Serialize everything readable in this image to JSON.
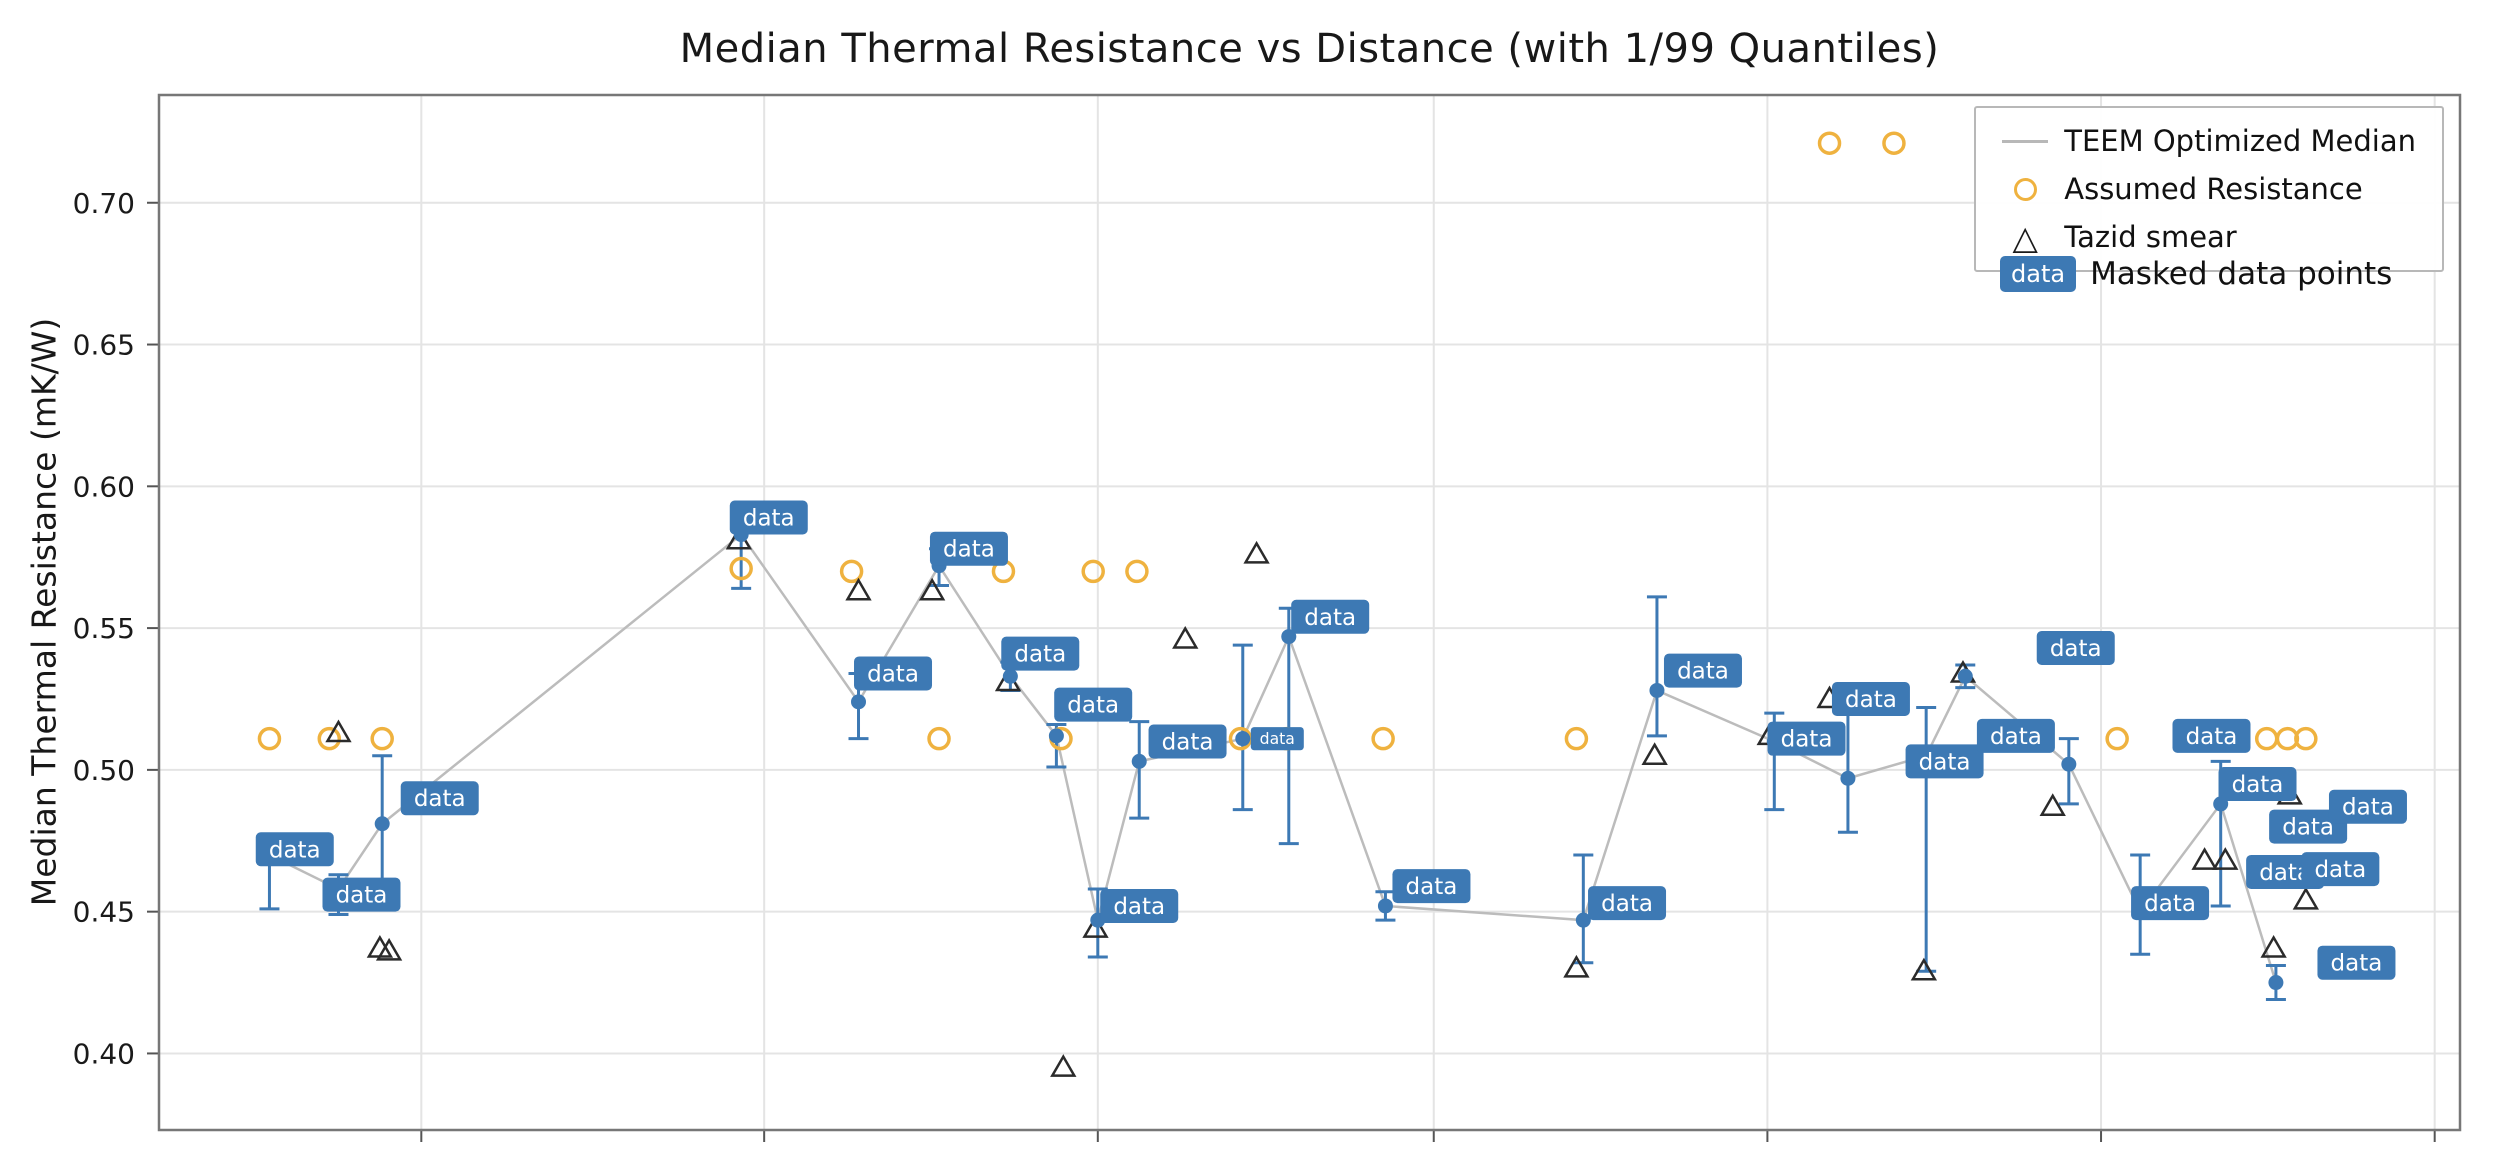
{
  "chart_data": {
    "type": "line",
    "title": "Median Thermal Resistance vs Distance (with 1/99 Quantiles)",
    "xlabel": "",
    "ylabel": "Median Thermal Resistance (mK/W)",
    "ylim": [
      0.373,
      0.738
    ],
    "yticks": [
      0.4,
      0.45,
      0.5,
      0.55,
      0.6,
      0.65,
      0.7
    ],
    "xgrid_percents": [
      11.4,
      26.3,
      40.8,
      55.4,
      69.9,
      84.4,
      98.9
    ],
    "grid": true,
    "badge_text": "data",
    "colors": {
      "median": "#3d79b4",
      "line": "#bcbcbc",
      "assumed": "#efb23f",
      "tazid": "#2b2b2b",
      "badge": "#3d79b4",
      "grid": "#e4e4e4"
    },
    "legend": {
      "position": "upper-right",
      "entries": [
        {
          "label": "TEEM Optimized Median",
          "marker": "line",
          "color": "#b8b8b8"
        },
        {
          "label": "Assumed Resistance",
          "marker": "open-circle",
          "color": "#efb23f"
        },
        {
          "label": "Tazid smear",
          "marker": "open-triangle",
          "color": "#2b2b2b"
        }
      ]
    },
    "masked_legend": {
      "badge": "data",
      "label": "Masked data points"
    },
    "series": [
      {
        "name": "TEEM Optimized Median",
        "type": "line+errorbars",
        "marker": "filled-circle",
        "points": [
          {
            "x": 4.8,
            "y": 0.47,
            "lo": 0.451,
            "hi": 0.477
          },
          {
            "x": 7.8,
            "y": 0.458,
            "lo": 0.449,
            "hi": 0.463
          },
          {
            "x": 9.7,
            "y": 0.481,
            "lo": 0.456,
            "hi": 0.505
          },
          {
            "x": 25.3,
            "y": 0.583,
            "lo": 0.564,
            "hi": 0.587
          },
          {
            "x": 30.4,
            "y": 0.524,
            "lo": 0.511,
            "hi": 0.534
          },
          {
            "x": 33.9,
            "y": 0.572,
            "lo": 0.565,
            "hi": 0.578
          },
          {
            "x": 37.0,
            "y": 0.533,
            "lo": 0.528,
            "hi": 0.538
          },
          {
            "x": 39.0,
            "y": 0.512,
            "lo": 0.501,
            "hi": 0.516
          },
          {
            "x": 40.8,
            "y": 0.447,
            "lo": 0.434,
            "hi": 0.458
          },
          {
            "x": 42.6,
            "y": 0.503,
            "lo": 0.483,
            "hi": 0.517
          },
          {
            "x": 47.1,
            "y": 0.511,
            "lo": 0.486,
            "hi": 0.544
          },
          {
            "x": 49.1,
            "y": 0.547,
            "lo": 0.474,
            "hi": 0.557
          },
          {
            "x": 53.3,
            "y": 0.452,
            "lo": 0.447,
            "hi": 0.457
          },
          {
            "x": 61.9,
            "y": 0.447,
            "lo": 0.432,
            "hi": 0.47
          },
          {
            "x": 65.1,
            "y": 0.528,
            "lo": 0.512,
            "hi": 0.561
          },
          {
            "x": 70.2,
            "y": 0.51,
            "lo": 0.486,
            "hi": 0.52
          },
          {
            "x": 73.4,
            "y": 0.497,
            "lo": 0.478,
            "hi": 0.525
          },
          {
            "x": 76.8,
            "y": 0.505,
            "lo": 0.429,
            "hi": 0.522
          },
          {
            "x": 78.5,
            "y": 0.533,
            "lo": 0.529,
            "hi": 0.537
          },
          {
            "x": 83.0,
            "y": 0.502,
            "lo": 0.488,
            "hi": 0.511
          },
          {
            "x": 86.1,
            "y": 0.45,
            "lo": 0.435,
            "hi": 0.47
          },
          {
            "x": 89.6,
            "y": 0.488,
            "lo": 0.452,
            "hi": 0.503
          },
          {
            "x": 92.0,
            "y": 0.425,
            "lo": 0.419,
            "hi": 0.431
          }
        ]
      },
      {
        "name": "Assumed Resistance",
        "type": "scatter",
        "marker": "open-circle",
        "points": [
          [
            4.8,
            0.511
          ],
          [
            7.4,
            0.511
          ],
          [
            9.7,
            0.511
          ],
          [
            25.3,
            0.571
          ],
          [
            30.1,
            0.57
          ],
          [
            33.9,
            0.511
          ],
          [
            36.7,
            0.57
          ],
          [
            39.2,
            0.511
          ],
          [
            40.6,
            0.57
          ],
          [
            42.5,
            0.57
          ],
          [
            47.0,
            0.511
          ],
          [
            49.0,
            0.511
          ],
          [
            53.2,
            0.511
          ],
          [
            61.6,
            0.511
          ],
          [
            72.6,
            0.721
          ],
          [
            75.4,
            0.721
          ],
          [
            85.1,
            0.511
          ],
          [
            89.3,
            0.511
          ],
          [
            91.6,
            0.511
          ],
          [
            92.5,
            0.511
          ],
          [
            93.3,
            0.511
          ]
        ]
      },
      {
        "name": "Tazid smear",
        "type": "scatter",
        "marker": "open-triangle",
        "points": [
          [
            7.8,
            0.513
          ],
          [
            9.6,
            0.437
          ],
          [
            10.0,
            0.436
          ],
          [
            25.2,
            0.581
          ],
          [
            30.4,
            0.563
          ],
          [
            33.6,
            0.563
          ],
          [
            36.9,
            0.531
          ],
          [
            39.3,
            0.395
          ],
          [
            40.7,
            0.444
          ],
          [
            44.6,
            0.546
          ],
          [
            47.7,
            0.576
          ],
          [
            61.6,
            0.43
          ],
          [
            65.0,
            0.505
          ],
          [
            70.0,
            0.512
          ],
          [
            72.6,
            0.525
          ],
          [
            76.7,
            0.429
          ],
          [
            78.4,
            0.534
          ],
          [
            82.3,
            0.487
          ],
          [
            88.9,
            0.468
          ],
          [
            89.8,
            0.468
          ],
          [
            91.9,
            0.437
          ],
          [
            92.6,
            0.491
          ],
          [
            93.3,
            0.454
          ]
        ]
      }
    ],
    "masked_badges": [
      {
        "x": 5.9,
        "y": 0.472
      },
      {
        "x": 8.8,
        "y": 0.456
      },
      {
        "x": 12.2,
        "y": 0.49
      },
      {
        "x": 26.5,
        "y": 0.589
      },
      {
        "x": 31.9,
        "y": 0.534
      },
      {
        "x": 35.2,
        "y": 0.578
      },
      {
        "x": 38.3,
        "y": 0.541
      },
      {
        "x": 40.6,
        "y": 0.523
      },
      {
        "x": 42.6,
        "y": 0.452
      },
      {
        "x": 44.7,
        "y": 0.51
      },
      {
        "x": 48.6,
        "y": 0.511,
        "small": true
      },
      {
        "x": 50.9,
        "y": 0.554
      },
      {
        "x": 55.3,
        "y": 0.459
      },
      {
        "x": 63.8,
        "y": 0.453
      },
      {
        "x": 67.1,
        "y": 0.535
      },
      {
        "x": 71.6,
        "y": 0.511
      },
      {
        "x": 74.4,
        "y": 0.525
      },
      {
        "x": 77.6,
        "y": 0.503
      },
      {
        "x": 80.7,
        "y": 0.512
      },
      {
        "x": 83.3,
        "y": 0.543
      },
      {
        "x": 87.4,
        "y": 0.453
      },
      {
        "x": 89.2,
        "y": 0.512
      },
      {
        "x": 91.2,
        "y": 0.495
      },
      {
        "x": 92.4,
        "y": 0.464
      },
      {
        "x": 93.4,
        "y": 0.48
      },
      {
        "x": 94.8,
        "y": 0.465
      },
      {
        "x": 96.0,
        "y": 0.487
      },
      {
        "x": 95.5,
        "y": 0.432
      }
    ]
  }
}
